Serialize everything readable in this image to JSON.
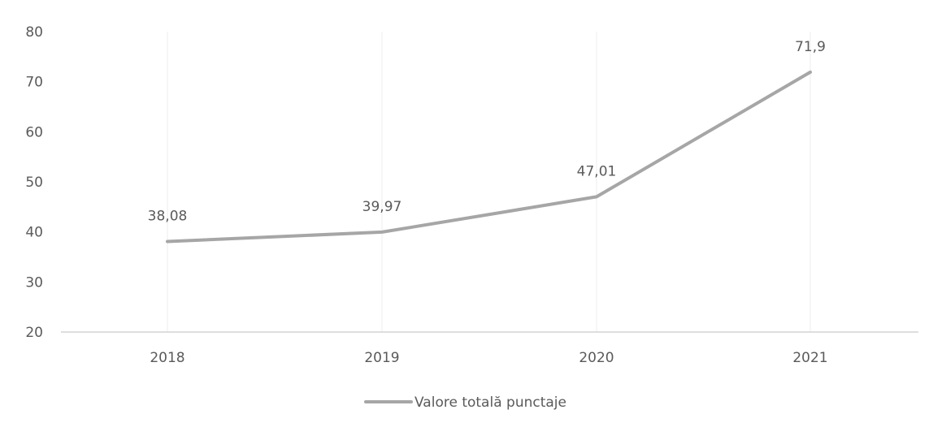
{
  "chart_data": {
    "type": "line",
    "title": "",
    "xlabel": "",
    "ylabel": "",
    "categories": [
      "2018",
      "2019",
      "2020",
      "2021"
    ],
    "series": [
      {
        "name": "Valore totală punctaje",
        "values": [
          38.08,
          39.97,
          47.01,
          71.9
        ],
        "labels": [
          "38,08",
          "39,97",
          "47,01",
          "71,9"
        ],
        "color": "#a6a6a6"
      }
    ],
    "ylim": [
      20,
      80
    ],
    "yticks": [
      20,
      30,
      40,
      50,
      60,
      70,
      80
    ],
    "grid": "vertical",
    "legend": "bottom"
  }
}
